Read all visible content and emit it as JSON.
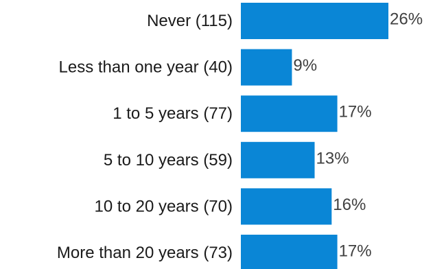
{
  "chart_data": {
    "type": "bar",
    "orientation": "horizontal",
    "categories": [
      "Never (115)",
      "Less than one year (40)",
      "1 to 5 years (77)",
      "5 to 10 years (59)",
      "10 to 20 years (70)",
      "More than 20 years (73)"
    ],
    "values": [
      26,
      9,
      17,
      13,
      16,
      17
    ],
    "value_labels": [
      "26%",
      "9%",
      "17%",
      "13%",
      "16%",
      "17%"
    ],
    "value_unit": "%",
    "bar_color": "#0A86D6",
    "title": "",
    "xlabel": "",
    "ylabel": "",
    "xlim": [
      0,
      26
    ],
    "grid": false,
    "legend": "none"
  }
}
